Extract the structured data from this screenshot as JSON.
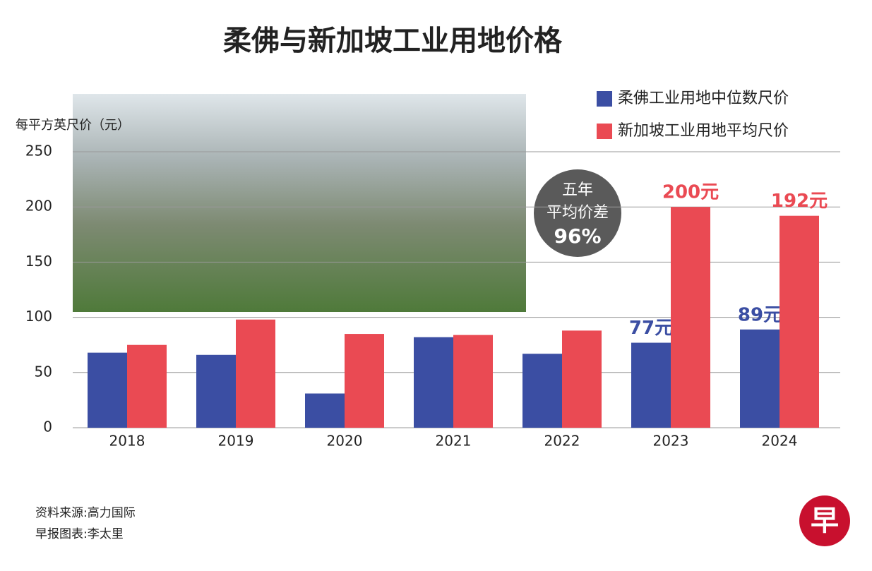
{
  "chart_data": {
    "type": "bar",
    "title": "柔佛与新加坡工业用地价格",
    "y_label": "每平方英尺价（元）",
    "categories": [
      "2018",
      "2019",
      "2020",
      "2021",
      "2022",
      "2023",
      "2024"
    ],
    "series": [
      {
        "name": "柔佛工业用地中位数尺价",
        "color": "#3b4ea3",
        "values": [
          68,
          66,
          31,
          82,
          67,
          77,
          89
        ],
        "value_labels": [
          null,
          null,
          null,
          null,
          null,
          "77元",
          "89元"
        ]
      },
      {
        "name": "新加坡工业用地平均尺价",
        "color": "#ea4a53",
        "values": [
          75,
          98,
          85,
          84,
          88,
          200,
          192
        ],
        "value_labels": [
          null,
          null,
          null,
          null,
          null,
          "200元",
          "192元"
        ]
      }
    ],
    "ylim": [
      0,
      250
    ],
    "yticks": [
      0,
      50,
      100,
      150,
      200,
      250
    ],
    "grid": true,
    "legend": "top-right",
    "annotation": [
      "五年",
      "平均价差",
      "96%"
    ],
    "source": [
      "资料来源:高力国际",
      "早报图表:李太里"
    ],
    "logo": "早"
  }
}
